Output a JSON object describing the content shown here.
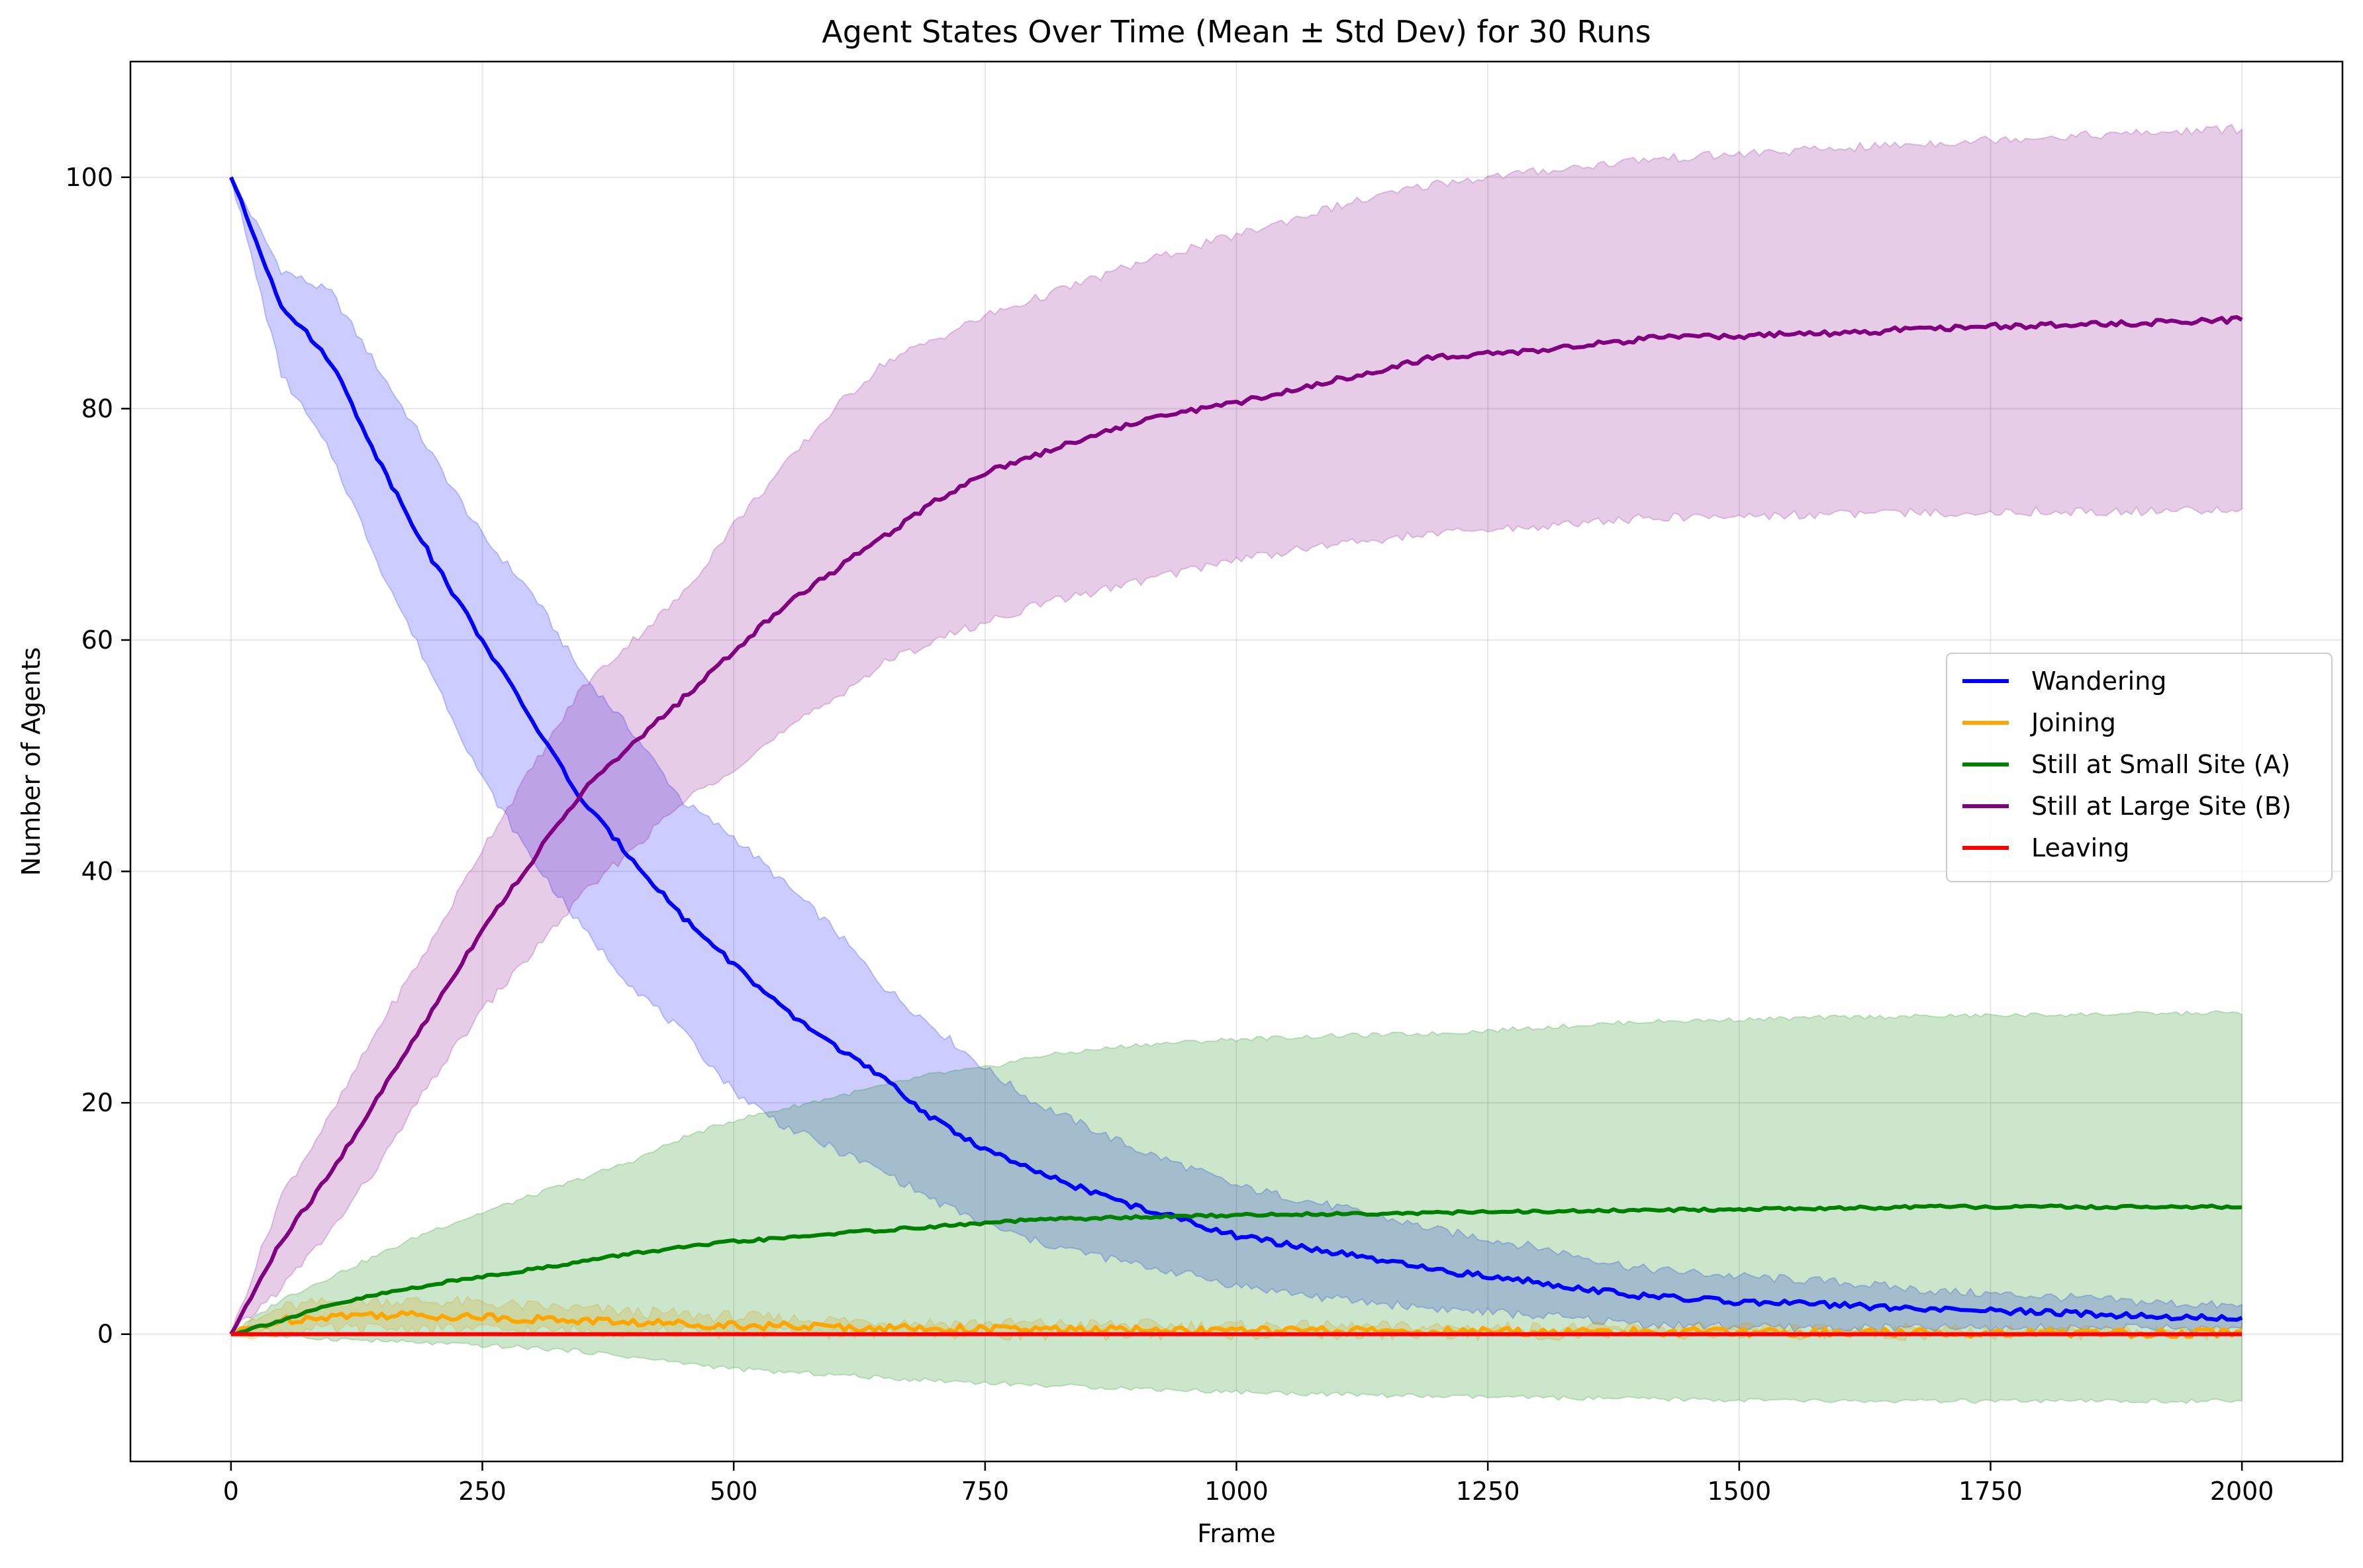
{
  "chart_data": {
    "type": "line",
    "title": "Agent States Over Time (Mean ± Std Dev) for 30 Runs",
    "xlabel": "Frame",
    "ylabel": "Number of Agents",
    "xlim": [
      -100,
      2100
    ],
    "ylim": [
      -11,
      110
    ],
    "xticks": [
      0,
      250,
      500,
      750,
      1000,
      1250,
      1500,
      1750,
      2000
    ],
    "yticks": [
      0,
      20,
      40,
      60,
      80,
      100
    ],
    "grid": true,
    "legend_position": "center-right",
    "series": [
      {
        "name": "Wandering",
        "color": "#0000ff",
        "band_color": "#0000ff",
        "x": [
          0,
          50,
          100,
          150,
          200,
          250,
          300,
          350,
          400,
          450,
          500,
          550,
          600,
          650,
          700,
          750,
          800,
          850,
          900,
          950,
          1000,
          1100,
          1200,
          1300,
          1400,
          1500,
          1600,
          1700,
          1800,
          1900,
          2000
        ],
        "mean": [
          100,
          89,
          84,
          75,
          67,
          60,
          53,
          46,
          41,
          36,
          32,
          28,
          25,
          22,
          18.5,
          16,
          14,
          12.5,
          11,
          9.8,
          8.5,
          7,
          5.5,
          4.5,
          3.3,
          2.8,
          2.5,
          2.1,
          1.9,
          1.6,
          1.3
        ],
        "lower": [
          100,
          83,
          76,
          66,
          57,
          48,
          41,
          35,
          30,
          26,
          21,
          18,
          16,
          14,
          11.5,
          9.5,
          8,
          7,
          6,
          5.2,
          4.2,
          3,
          2.2,
          1.6,
          0.9,
          0.6,
          0.5,
          0.5,
          0.5,
          0.5,
          0.5
        ],
        "upper": [
          100,
          92,
          90,
          83,
          76,
          69,
          64,
          57,
          52,
          46,
          43,
          39,
          35,
          30,
          26.5,
          23,
          20,
          18,
          16,
          14.5,
          12.8,
          11,
          9,
          7.5,
          5.7,
          5,
          4.5,
          3.7,
          3.3,
          2.8,
          2.4
        ]
      },
      {
        "name": "Joining",
        "color": "#ffa500",
        "band_color": "#ffa500",
        "x": [
          0,
          50,
          100,
          150,
          200,
          250,
          300,
          350,
          400,
          450,
          500,
          600,
          700,
          800,
          900,
          1000,
          1200,
          1400,
          1600,
          1800,
          2000
        ],
        "mean": [
          0,
          1.2,
          1.6,
          1.7,
          1.6,
          1.5,
          1.3,
          1.2,
          1.0,
          0.9,
          0.8,
          0.6,
          0.5,
          0.4,
          0.35,
          0.3,
          0.25,
          0.2,
          0.15,
          0.1,
          0.1
        ],
        "lower": [
          0,
          0.2,
          0.4,
          0.5,
          0.5,
          0.4,
          0.3,
          0.3,
          0.2,
          0.2,
          0.1,
          0.1,
          0.1,
          0,
          0,
          0,
          0,
          0,
          0,
          0,
          0
        ],
        "upper": [
          0,
          2.3,
          2.8,
          2.9,
          2.8,
          2.7,
          2.4,
          2.2,
          1.9,
          1.7,
          1.5,
          1.2,
          1.0,
          0.9,
          0.8,
          0.7,
          0.6,
          0.5,
          0.4,
          0.3,
          0.3
        ]
      },
      {
        "name": "Still at Small Site (A)",
        "color": "#008000",
        "band_color": "#008000",
        "x": [
          0,
          50,
          100,
          150,
          200,
          250,
          300,
          350,
          400,
          450,
          500,
          550,
          600,
          650,
          700,
          750,
          800,
          900,
          1000,
          1100,
          1200,
          1300,
          1400,
          1500,
          1600,
          1700,
          1800,
          1900,
          2000
        ],
        "mean": [
          0,
          1.2,
          2.5,
          3.5,
          4.3,
          5.0,
          5.6,
          6.3,
          7.0,
          7.5,
          8.0,
          8.3,
          8.7,
          9.0,
          9.3,
          9.6,
          9.9,
          10.1,
          10.3,
          10.4,
          10.5,
          10.6,
          10.7,
          10.8,
          10.9,
          11.0,
          11.0,
          11.0,
          11.0
        ],
        "lower": [
          0,
          -0.2,
          -0.4,
          -0.6,
          -0.8,
          -1.0,
          -1.2,
          -1.5,
          -2.0,
          -2.5,
          -3.0,
          -3.3,
          -3.5,
          -3.8,
          -4.0,
          -4.2,
          -4.4,
          -4.7,
          -5.0,
          -5.2,
          -5.4,
          -5.5,
          -5.6,
          -5.7,
          -5.8,
          -5.8,
          -5.8,
          -5.8,
          -5.8
        ],
        "upper": [
          0,
          3.0,
          5.0,
          7.0,
          9.0,
          10.5,
          12.0,
          13.5,
          15.0,
          17.0,
          18.5,
          19.5,
          20.5,
          21.5,
          22.5,
          23.0,
          24.0,
          25.0,
          25.5,
          25.8,
          26.0,
          26.5,
          27.0,
          27.2,
          27.4,
          27.5,
          27.6,
          27.7,
          27.8
        ]
      },
      {
        "name": "Still at Large Site (B)",
        "color": "#800080",
        "band_color": "#800080",
        "x": [
          0,
          50,
          100,
          150,
          200,
          250,
          300,
          350,
          400,
          450,
          500,
          550,
          600,
          650,
          700,
          750,
          800,
          850,
          900,
          950,
          1000,
          1100,
          1200,
          1300,
          1400,
          1500,
          1600,
          1700,
          1800,
          1900,
          2000
        ],
        "mean": [
          0,
          8,
          14,
          21,
          28,
          35,
          41,
          47,
          51,
          55,
          59,
          63,
          66,
          69,
          72,
          74.5,
          76,
          77.5,
          78.8,
          79.8,
          80.5,
          82.5,
          84.5,
          85,
          86,
          86.3,
          86.5,
          87,
          87.2,
          87.4,
          87.7
        ],
        "lower": [
          0,
          4,
          9,
          15,
          22,
          28,
          33,
          38,
          42,
          46,
          49,
          52,
          55,
          58,
          60,
          61.5,
          63,
          64,
          65,
          66,
          67,
          68.3,
          69.2,
          69.8,
          70.5,
          70.7,
          70.9,
          71.0,
          71.1,
          71.1,
          71.2
        ],
        "upper": [
          0,
          12,
          19,
          27,
          34,
          42,
          49,
          56,
          60,
          64,
          70,
          75,
          80,
          84,
          86,
          88,
          89.5,
          91,
          92.5,
          93.8,
          95,
          97.5,
          99.5,
          100.5,
          101.5,
          102,
          102.5,
          103,
          103.5,
          103.8,
          104.2
        ]
      },
      {
        "name": "Leaving",
        "color": "#ff0000",
        "band_color": "#ff0000",
        "x": [
          0,
          2000
        ],
        "mean": [
          0,
          0
        ],
        "lower": [
          0,
          0
        ],
        "upper": [
          0,
          0
        ]
      }
    ]
  }
}
